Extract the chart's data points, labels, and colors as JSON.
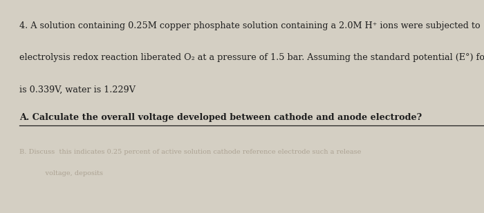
{
  "background_color": "#d4cfc3",
  "text_color": "#1e1e1e",
  "faded_text_color": "#a89e8e",
  "main_text_line1": "4. A solution containing 0.25M copper phosphate solution containing a 2.0M H⁺ ions were subjected to",
  "main_text_line2": "electrolysis redox reaction liberated O₂ at a pressure of 1.5 bar. Assuming the standard potential (E°) for copper",
  "main_text_line3": "is 0.339V, water is 1.229V",
  "underline_text": "A. Calculate the overall voltage developed between cathode and anode electrode?",
  "faded_line1": "B. Discuss  this indicates 0.25 percent of active solution cathode reference electrode such a release",
  "faded_line2": "            voltage, deposits",
  "font_size_main": 9.2,
  "font_size_faded": 7.0
}
